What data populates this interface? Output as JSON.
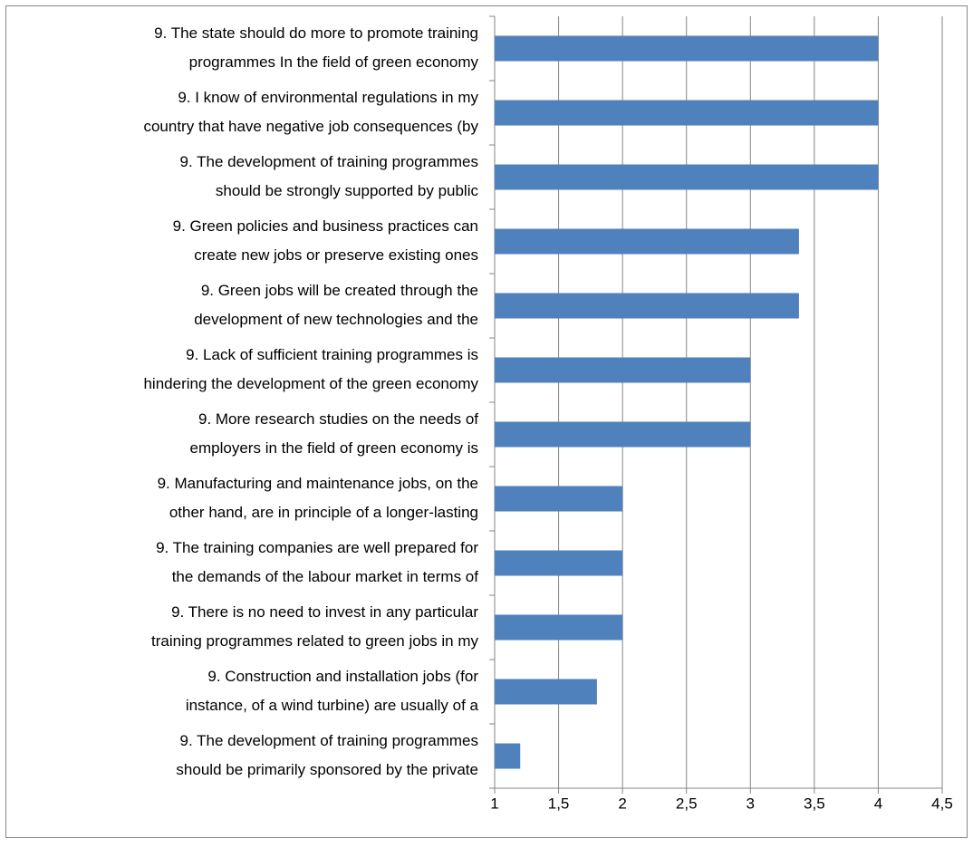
{
  "chart_data": {
    "type": "hbar",
    "categories": [
      [
        "9. The state should do more to promote training",
        "programmes In the field of green economy"
      ],
      [
        "9. I know of environmental regulations in my",
        "country that have negative job consequences (by"
      ],
      [
        "9. The development of training programmes",
        "should be strongly supported by public"
      ],
      [
        "9. Green policies and business practices can",
        "create new jobs or preserve existing ones"
      ],
      [
        "9. Green jobs will be created through the",
        "development of new technologies and the"
      ],
      [
        "9. Lack of sufficient training programmes is",
        "hindering the development of the green economy"
      ],
      [
        "9. More research studies on the needs of",
        "employers in the field of green economy is"
      ],
      [
        "9. Manufacturing and maintenance jobs, on the",
        "other hand, are in principle of a longer-lasting"
      ],
      [
        "9. The training companies are well prepared for",
        "the demands of the labour market in terms of"
      ],
      [
        "9. There is no need to invest in any particular",
        "training programmes related to green jobs in my"
      ],
      [
        "9. Construction and installation jobs (for",
        "instance, of a wind turbine) are usually of a"
      ],
      [
        "9. The development of training programmes",
        "should be primarily sponsored by the private"
      ]
    ],
    "values": [
      4,
      4,
      4,
      3.38,
      3.38,
      3,
      3,
      2,
      2,
      2,
      1.8,
      1.2
    ],
    "color": "#4f81bd",
    "xlim": [
      1,
      4.5
    ],
    "xticks": [
      1,
      {
        "value": 1.5,
        "label": "1,5"
      },
      2,
      {
        "value": 2.5,
        "label": "2,5"
      },
      3,
      {
        "value": 3.5,
        "label": "3,5"
      },
      4,
      {
        "value": 4.5,
        "label": "4,5"
      }
    ],
    "grid": true
  }
}
